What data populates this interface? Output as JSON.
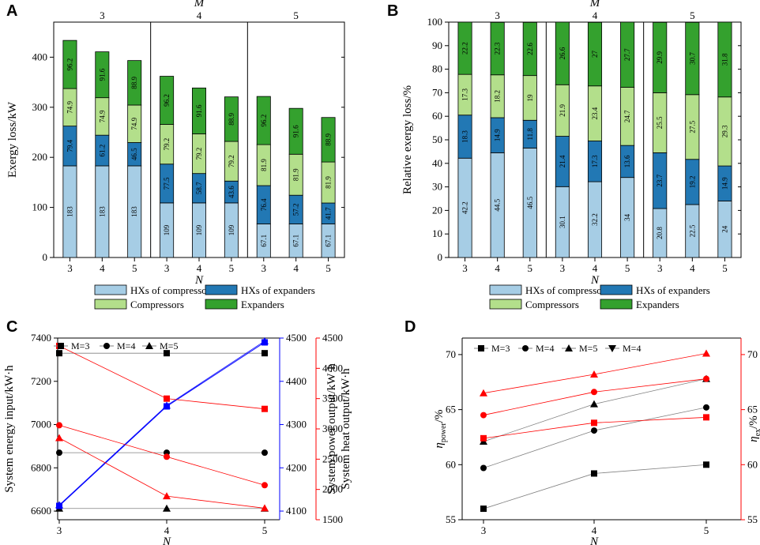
{
  "colors": {
    "hx_comp": "#a6cde5",
    "hx_exp": "#2278b4",
    "comp": "#b3df8b",
    "exp": "#34a12e",
    "blue_axis": "#0000ff",
    "red_axis": "#ff0000",
    "black": "#000000",
    "gray_line": "#808080"
  },
  "legend_ab": [
    {
      "label": "HXs of compressors",
      "color_key": "hx_comp"
    },
    {
      "label": "HXs of expanders",
      "color_key": "hx_exp"
    },
    {
      "label": "Compressors",
      "color_key": "comp"
    },
    {
      "label": "Expanders",
      "color_key": "exp"
    }
  ],
  "chart_data": [
    {
      "panel": "A",
      "type": "bar",
      "stacked": true,
      "title": "M",
      "groups": [
        "3",
        "4",
        "5"
      ],
      "categories": [
        "3",
        "4",
        "5",
        "3",
        "4",
        "5",
        "3",
        "4",
        "5"
      ],
      "xlabel": "N",
      "ylabel": "Exergy loss/kW",
      "ylim": [
        0,
        470
      ],
      "yticks": [
        "0",
        "100",
        "200",
        "300",
        "400"
      ],
      "series": [
        {
          "name": "HXs of compressors",
          "values": [
            183,
            183,
            183,
            109,
            109,
            109,
            67.1,
            67.1,
            67.1
          ],
          "labels": [
            "183",
            "183",
            "183",
            "109",
            "109",
            "109",
            "67.1",
            "67.1",
            "67.1"
          ]
        },
        {
          "name": "HXs of expanders",
          "values": [
            79.4,
            61.2,
            46.5,
            77.5,
            58.7,
            43.6,
            76.4,
            57.2,
            41.7
          ],
          "labels": [
            "79.4",
            "61.2",
            "46.5",
            "77.5",
            "58.7",
            "43.6",
            "76.4",
            "57.2",
            "41.7"
          ]
        },
        {
          "name": "Compressors",
          "values": [
            74.9,
            74.9,
            74.9,
            79.2,
            79.2,
            79.2,
            81.9,
            81.9,
            81.9
          ],
          "labels": [
            "74.9",
            "74.9",
            "74.9",
            "79.2",
            "79.2",
            "79.2",
            "81.9",
            "81.9",
            "81.9"
          ]
        },
        {
          "name": "Expanders",
          "values": [
            96.2,
            91.6,
            88.9,
            96.2,
            91.6,
            88.9,
            96.2,
            91.6,
            88.9
          ],
          "labels": [
            "96.2",
            "91.6",
            "88.9",
            "96.2",
            "91.6",
            "88.9",
            "96.2",
            "91.6",
            "88.9"
          ]
        }
      ]
    },
    {
      "panel": "B",
      "type": "bar",
      "stacked": true,
      "title": "M",
      "groups": [
        "3",
        "4",
        "5"
      ],
      "categories": [
        "3",
        "4",
        "5",
        "3",
        "4",
        "5",
        "3",
        "4",
        "5"
      ],
      "xlabel": "N",
      "ylabel": "Relative exergy loss/%",
      "ylim": [
        0,
        100
      ],
      "yticks": [
        "0",
        "10",
        "20",
        "30",
        "40",
        "50",
        "60",
        "70",
        "80",
        "90",
        "100"
      ],
      "series": [
        {
          "name": "HXs of compressors",
          "values": [
            42.2,
            44.5,
            46.5,
            30.1,
            32.2,
            34,
            20.8,
            22.5,
            24
          ],
          "labels": [
            "42.2",
            "44.5",
            "46.5",
            "30.1",
            "32.2",
            "34",
            "20.8",
            "22.5",
            "24"
          ]
        },
        {
          "name": "HXs of expanders",
          "values": [
            18.3,
            14.9,
            11.8,
            21.4,
            17.3,
            13.6,
            23.7,
            19.2,
            14.9
          ],
          "labels": [
            "18.3",
            "14.9",
            "11.8",
            "21.4",
            "17.3",
            "13.6",
            "23.7",
            "19.2",
            "14.9"
          ]
        },
        {
          "name": "Compressors",
          "values": [
            17.3,
            18.2,
            19,
            21.9,
            23.4,
            24.7,
            25.5,
            27.5,
            29.3
          ],
          "labels": [
            "17.3",
            "18.2",
            "19",
            "21.9",
            "23.4",
            "24.7",
            "25.5",
            "27.5",
            "29.3"
          ]
        },
        {
          "name": "Expanders",
          "values": [
            22.2,
            22.3,
            22.6,
            26.6,
            27,
            27.7,
            29.9,
            30.7,
            31.8
          ],
          "labels": [
            "22.2",
            "22.3",
            "22.6",
            "26.6",
            "27",
            "27.7",
            "29.9",
            "30.7",
            "31.8"
          ]
        }
      ]
    },
    {
      "panel": "C",
      "type": "line",
      "x": [
        3,
        4,
        5
      ],
      "xticks": [
        "3",
        "4",
        "5"
      ],
      "xlabel": "N",
      "ylabel_left": "System energy input/kW·h",
      "ylabel_right1": "System power output/kW·h",
      "ylabel_right2": "System heat output/kW·h",
      "ylim_left": [
        6560,
        7400
      ],
      "yticks_left": [
        "6600",
        "6800",
        "7000",
        "7200",
        "7400"
      ],
      "ylim_right1": [
        4080,
        4500
      ],
      "yticks_right1": [
        "4100",
        "4200",
        "4300",
        "4400",
        "4500"
      ],
      "ylim_right2": [
        1500,
        4500
      ],
      "yticks_right2": [
        "1500",
        "2000",
        "2500",
        "3000",
        "3500",
        "4000",
        "4500"
      ],
      "legend": [
        "M=3",
        "M=4",
        "M=5"
      ],
      "series": [
        {
          "name": "Energy input M=3",
          "axis": "left",
          "marker": "square",
          "color_key": "black",
          "line_key": "gray_line",
          "values": [
            7330,
            7330,
            7330
          ]
        },
        {
          "name": "Energy input M=4",
          "axis": "left",
          "marker": "circle",
          "color_key": "black",
          "line_key": "gray_line",
          "values": [
            6870,
            6870,
            6870
          ]
        },
        {
          "name": "Energy input M=5",
          "axis": "left",
          "marker": "triangle",
          "color_key": "black",
          "line_key": "gray_line",
          "values": [
            6612,
            6612,
            6612
          ]
        },
        {
          "name": "Power output M=3",
          "axis": "right1",
          "marker": "square",
          "color_key": "blue_axis",
          "line_key": "blue_axis",
          "values": [
            4112,
            4342,
            4490
          ]
        },
        {
          "name": "Power output M=4",
          "axis": "right1",
          "marker": "circle",
          "color_key": "blue_axis",
          "line_key": "blue_axis",
          "values": [
            4112,
            4342,
            4490
          ]
        },
        {
          "name": "Power output M=5",
          "axis": "right1",
          "marker": "triangle",
          "color_key": "blue_axis",
          "line_key": "blue_axis",
          "values": [
            4114,
            4344,
            4493
          ]
        },
        {
          "name": "Heat output M=3",
          "axis": "right2",
          "marker": "square",
          "color_key": "red_axis",
          "line_key": "red_axis",
          "values": [
            4370,
            3500,
            3330
          ]
        },
        {
          "name": "Heat output M=4",
          "axis": "right2",
          "marker": "circle",
          "color_key": "red_axis",
          "line_key": "red_axis",
          "values": [
            3060,
            2540,
            2070
          ]
        },
        {
          "name": "Heat output M=5",
          "axis": "right2",
          "marker": "triangle",
          "color_key": "red_axis",
          "line_key": "red_axis",
          "values": [
            2850,
            1890,
            1690
          ]
        }
      ]
    },
    {
      "panel": "D",
      "type": "line",
      "x": [
        3,
        4,
        5
      ],
      "xticks": [
        "3",
        "4",
        "5"
      ],
      "xlabel": "N",
      "ylabel_left_main": "η",
      "ylabel_left_sub": "power",
      "ylabel_left_unit": "/%",
      "ylabel_right_main": "η",
      "ylabel_right_sub": "ex",
      "ylabel_right_unit": "/%",
      "ylim_left": [
        55,
        71.5
      ],
      "yticks_left": [
        "55",
        "60",
        "65",
        "70"
      ],
      "ylim_right": [
        55,
        71.5
      ],
      "yticks_right": [
        "55",
        "60",
        "65",
        "70"
      ],
      "legend": [
        "M=3",
        "M=4",
        "M=5",
        "M=4"
      ],
      "series": [
        {
          "name": "eta_power M=3",
          "axis": "left",
          "marker": "square",
          "color_key": "black",
          "line_key": "gray_line",
          "values": [
            56.0,
            59.2,
            60.0
          ]
        },
        {
          "name": "eta_power M=4",
          "axis": "left",
          "marker": "circle",
          "color_key": "black",
          "line_key": "gray_line",
          "values": [
            59.7,
            63.1,
            65.2
          ]
        },
        {
          "name": "eta_power M=5",
          "axis": "left",
          "marker": "triangle",
          "color_key": "black",
          "line_key": "gray_line",
          "values": [
            62.1,
            65.5,
            67.8
          ]
        },
        {
          "name": "eta_ex M=3",
          "axis": "right",
          "marker": "square",
          "color_key": "red_axis",
          "line_key": "red_axis",
          "values": [
            62.4,
            63.8,
            64.3
          ]
        },
        {
          "name": "eta_ex M=4",
          "axis": "right",
          "marker": "circle",
          "color_key": "red_axis",
          "line_key": "red_axis",
          "values": [
            64.5,
            66.6,
            67.8
          ]
        },
        {
          "name": "eta_ex M=5",
          "axis": "right",
          "marker": "triangle",
          "color_key": "red_axis",
          "line_key": "red_axis",
          "values": [
            66.5,
            68.2,
            70.1
          ]
        }
      ]
    }
  ],
  "panels": {
    "A": "A",
    "B": "B",
    "C": "C",
    "D": "D"
  }
}
